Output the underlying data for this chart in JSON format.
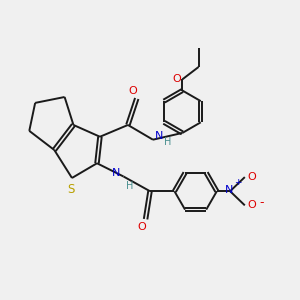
{
  "bg_color": "#f0f0f0",
  "bond_color": "#1a1a1a",
  "sulfur_color": "#b8a000",
  "oxygen_color": "#dd0000",
  "nitrogen_color": "#0000cc",
  "nh_color": "#4a9090",
  "lw": 1.4,
  "fs": 7.0,
  "xlim": [
    0,
    10
  ],
  "ylim": [
    0,
    10
  ]
}
